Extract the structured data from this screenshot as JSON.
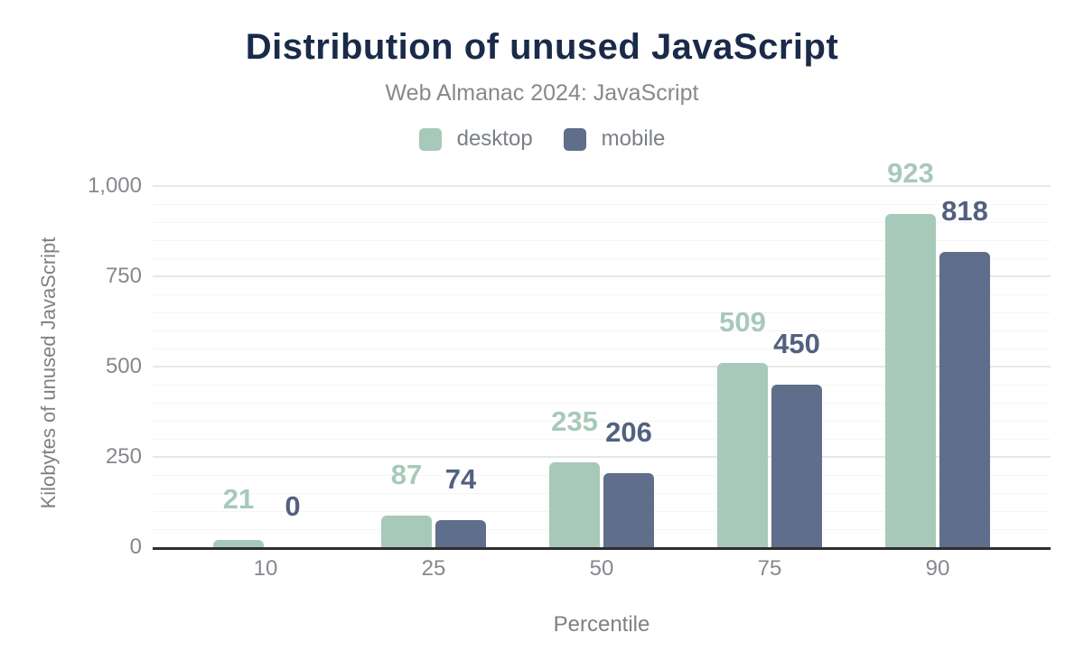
{
  "chart_data": {
    "type": "bar",
    "title": "Distribution of unused JavaScript",
    "subtitle": "Web Almanac 2024: JavaScript",
    "xlabel": "Percentile",
    "ylabel": "Kilobytes of unused JavaScript",
    "categories": [
      "10",
      "25",
      "50",
      "75",
      "90"
    ],
    "series": [
      {
        "name": "desktop",
        "color": "#a7c9ba",
        "label_color": "#a7c9ba",
        "values": [
          21,
          87,
          235,
          509,
          923
        ]
      },
      {
        "name": "mobile",
        "color": "#5f6e8a",
        "label_color": "#52617f",
        "values": [
          0,
          74,
          206,
          450,
          818
        ]
      }
    ],
    "ylim": [
      0,
      1000
    ],
    "y_ticks": [
      0,
      250,
      500,
      750,
      1000
    ],
    "y_tick_labels": [
      "0",
      "250",
      "500",
      "750",
      "1,000"
    ],
    "minor_grid_step": 50,
    "grid": true,
    "legend_position": "top",
    "value_labels_shown": true
  },
  "colors": {
    "title": "#1a2b49",
    "subtitle": "#85898e",
    "axis_text": "#85888d",
    "axis_line": "#2e2e2e",
    "major_grid": "#e7e7e7",
    "minor_grid": "#f5f5f5",
    "background": "#ffffff"
  }
}
